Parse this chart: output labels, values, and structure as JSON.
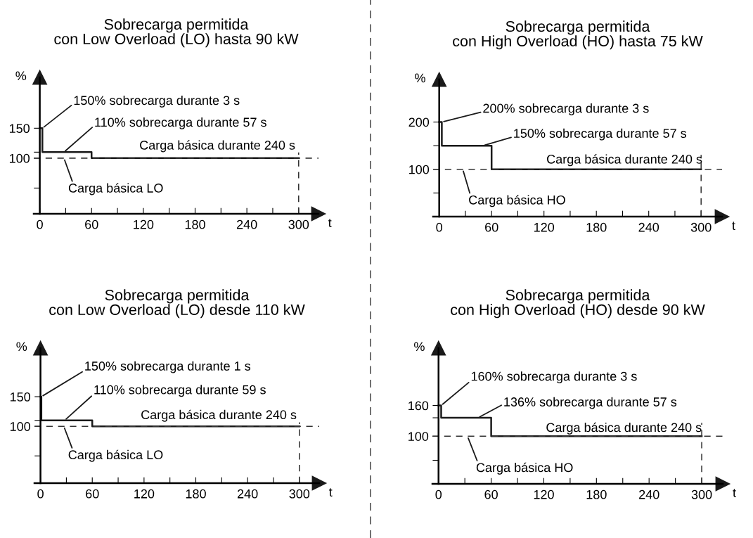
{
  "chart_data": [
    {
      "type": "step",
      "title": "Sobrecarga permitida\ncon Low Overload (LO) hasta 90 kW",
      "xlabel": "t",
      "ylabel": "%",
      "x": [
        0,
        3,
        60,
        300
      ],
      "series": [
        {
          "color": "#1a1a1a",
          "values": [
            150,
            110,
            100,
            100
          ]
        }
      ],
      "xlim": [
        -7,
        323
      ],
      "xticks": [
        0,
        {
          "value": 30,
          "label": null
        },
        60,
        {
          "value": 90,
          "label": null
        },
        120,
        {
          "value": 150,
          "label": null
        },
        180,
        {
          "value": 210,
          "label": null
        },
        240,
        {
          "value": 270,
          "label": null
        },
        300
      ],
      "ylim": [
        7,
        235
      ],
      "yticks": [
        {
          "value": 50,
          "label": null
        },
        100,
        {
          "value": 110,
          "label": null
        },
        150
      ],
      "ref_lines": [
        {
          "axis": "y",
          "value": 100,
          "color": "#333333",
          "line_style": "dashed"
        },
        {
          "axis": "x",
          "value": 300,
          "color": "#333333",
          "line_style": "dashed"
        }
      ],
      "annotations": [
        {
          "text": "150% sobrecarga durante 3 s",
          "x": 3,
          "y": 150
        },
        {
          "text": "110% sobrecarga durante 57 s",
          "x": 28,
          "y": 110
        },
        {
          "text": "Carga básica durante 240 s",
          "x": 200,
          "y": 100
        },
        {
          "text": "Carga básica LO",
          "x": 28,
          "y": 100
        }
      ],
      "grid": false,
      "legend": false
    },
    {
      "type": "step",
      "title": "Sobrecarga permitida\ncon High Overload (HO) hasta 75 kW",
      "xlabel": "t",
      "ylabel": "%",
      "x": [
        0,
        3,
        60,
        300
      ],
      "series": [
        {
          "color": "#1a1a1a",
          "values": [
            200,
            150,
            100,
            100
          ]
        }
      ],
      "xlim": [
        -7,
        324
      ],
      "xticks": [
        0,
        {
          "value": 30,
          "label": null
        },
        60,
        {
          "value": 90,
          "label": null
        },
        120,
        {
          "value": 150,
          "label": null
        },
        180,
        {
          "value": 210,
          "label": null
        },
        240,
        {
          "value": 270,
          "label": null
        },
        300
      ],
      "ylim": [
        0,
        290
      ],
      "yticks": [
        {
          "value": 50,
          "label": null
        },
        100,
        {
          "value": 150,
          "label": null
        },
        200
      ],
      "ref_lines": [
        {
          "axis": "y",
          "value": 100,
          "color": "#333333",
          "line_style": "dashed"
        },
        {
          "axis": "x",
          "value": 300,
          "color": "#333333",
          "line_style": "dashed"
        }
      ],
      "annotations": [
        {
          "text": "200% sobrecarga durante 3 s",
          "x": 3,
          "y": 200
        },
        {
          "text": "150% sobrecarga durante 57 s",
          "x": 50,
          "y": 150
        },
        {
          "text": "Carga básica durante 240 s",
          "x": 200,
          "y": 100
        },
        {
          "text": "Carga básica HO",
          "x": 27,
          "y": 100
        }
      ],
      "grid": false,
      "legend": false
    },
    {
      "type": "step",
      "title": "Sobrecarga permitida\ncon Low Overload (LO) desde 110 kW",
      "xlabel": "t",
      "ylabel": "%",
      "x": [
        0,
        1,
        60,
        300
      ],
      "series": [
        {
          "color": "#1a1a1a",
          "values": [
            150,
            110,
            100,
            100
          ]
        }
      ],
      "xlim": [
        -7,
        323
      ],
      "xticks": [
        0,
        {
          "value": 30,
          "label": null
        },
        60,
        {
          "value": 90,
          "label": null
        },
        120,
        {
          "value": 150,
          "label": null
        },
        180,
        {
          "value": 210,
          "label": null
        },
        240,
        {
          "value": 270,
          "label": null
        },
        300
      ],
      "ylim": [
        4,
        232
      ],
      "yticks": [
        {
          "value": 50,
          "label": null
        },
        100,
        {
          "value": 110,
          "label": null
        },
        150
      ],
      "ref_lines": [
        {
          "axis": "y",
          "value": 100,
          "color": "#333333",
          "line_style": "dashed"
        },
        {
          "axis": "x",
          "value": 300,
          "color": "#333333",
          "line_style": "dashed"
        }
      ],
      "annotations": [
        {
          "text": "150% sobrecarga durante 1 s",
          "x": 1,
          "y": 150
        },
        {
          "text": "110% sobrecarga durante 59 s",
          "x": 28,
          "y": 110
        },
        {
          "text": "Carga básica durante 240 s",
          "x": 200,
          "y": 100
        },
        {
          "text": "Carga básica LO",
          "x": 27,
          "y": 100
        }
      ],
      "grid": false,
      "legend": false
    },
    {
      "type": "step",
      "title": "Sobrecarga permitida\ncon High Overload (HO) desde 90 kW",
      "xlabel": "t",
      "ylabel": "%",
      "x": [
        0,
        3,
        60,
        300
      ],
      "series": [
        {
          "color": "#1a1a1a",
          "values": [
            160,
            136,
            100,
            100
          ]
        }
      ],
      "xlim": [
        -7,
        324
      ],
      "xticks": [
        0,
        {
          "value": 30,
          "label": null
        },
        60,
        {
          "value": 90,
          "label": null
        },
        120,
        {
          "value": 150,
          "label": null
        },
        180,
        {
          "value": 210,
          "label": null
        },
        240,
        {
          "value": 270,
          "label": null
        },
        300
      ],
      "ylim": [
        7,
        272
      ],
      "yticks": [
        {
          "value": 53,
          "label": null
        },
        100,
        {
          "value": 136,
          "label": null
        },
        160
      ],
      "ref_lines": [
        {
          "axis": "y",
          "value": 100,
          "color": "#333333",
          "line_style": "dashed"
        },
        {
          "axis": "x",
          "value": 300,
          "color": "#333333",
          "line_style": "dashed"
        }
      ],
      "annotations": [
        {
          "text": "160% sobrecarga durante 3 s",
          "x": 3,
          "y": 160
        },
        {
          "text": "136% sobrecarga durante 57 s",
          "x": 45,
          "y": 136
        },
        {
          "text": "Carga básica durante 240 s",
          "x": 200,
          "y": 100
        },
        {
          "text": "Carga básica HO",
          "x": 33,
          "y": 100
        }
      ],
      "grid": false,
      "legend": false
    }
  ]
}
